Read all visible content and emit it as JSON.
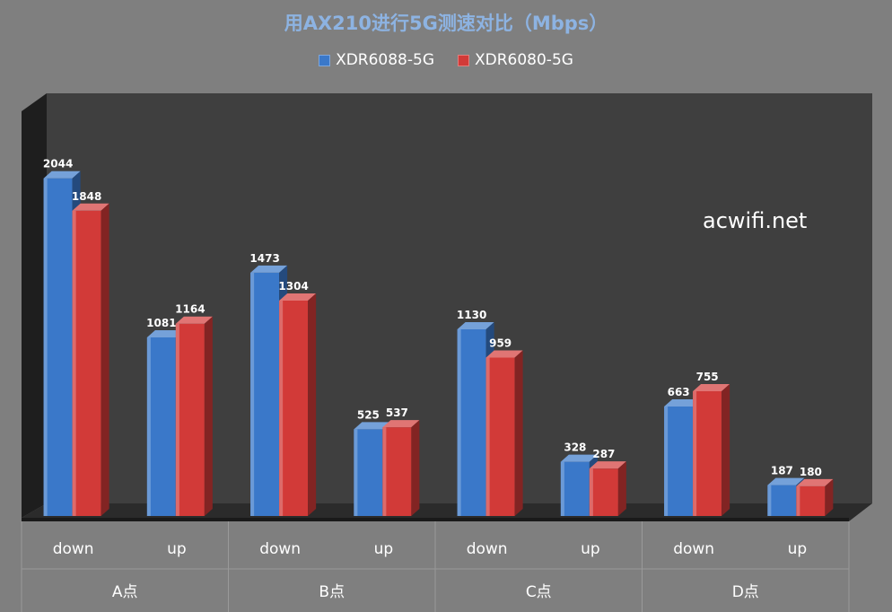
{
  "chart_data": {
    "type": "bar",
    "title": "用AX210进行5G测速对比（Mbps）",
    "groups": [
      {
        "label": "A点",
        "categories": [
          "down",
          "up"
        ]
      },
      {
        "label": "B点",
        "categories": [
          "down",
          "up"
        ]
      },
      {
        "label": "C点",
        "categories": [
          "down",
          "up"
        ]
      },
      {
        "label": "D点",
        "categories": [
          "down",
          "up"
        ]
      }
    ],
    "categories": [
      "down",
      "up",
      "down",
      "up",
      "down",
      "up",
      "down",
      "up"
    ],
    "series": [
      {
        "name": "XDR6088-5G",
        "color": "#3a78c9",
        "values": [
          2044,
          1081,
          1473,
          525,
          1130,
          328,
          663,
          187
        ]
      },
      {
        "name": "XDR6080-5G",
        "color": "#d23a38",
        "values": [
          1848,
          1164,
          1304,
          537,
          959,
          287,
          755,
          180
        ]
      }
    ],
    "ylim": [
      0,
      2200
    ],
    "grid": false,
    "legend_position": "top-center",
    "data_labels": true,
    "watermark": "acwifi.net"
  }
}
